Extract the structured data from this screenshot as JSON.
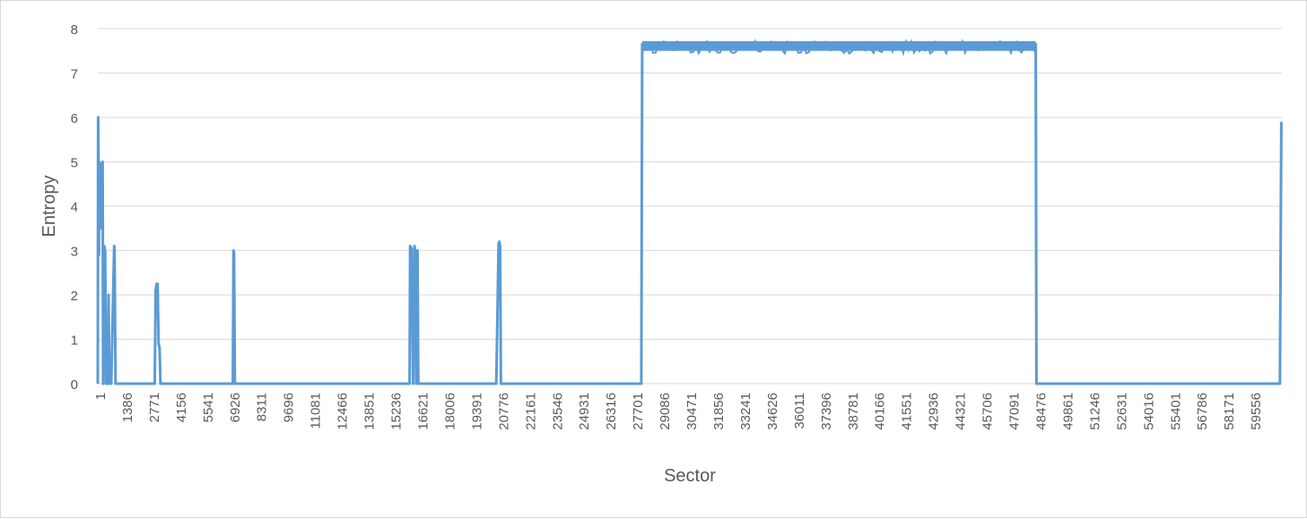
{
  "chart_data": {
    "type": "line",
    "title": "",
    "xlabel": "Sector",
    "ylabel": "Entropy",
    "ylim": [
      0,
      8
    ],
    "xlim": [
      1,
      61330
    ],
    "y_ticks": [
      0,
      1,
      2,
      3,
      4,
      5,
      6,
      7,
      8
    ],
    "x_tick_labels": [
      "1",
      "1386",
      "2771",
      "4156",
      "5541",
      "6926",
      "8311",
      "9696",
      "11081",
      "12466",
      "13851",
      "15236",
      "16621",
      "18006",
      "19391",
      "20776",
      "22161",
      "23546",
      "24931",
      "26316",
      "27701",
      "29086",
      "30471",
      "31856",
      "33241",
      "34626",
      "36011",
      "37396",
      "38781",
      "40166",
      "41551",
      "42936",
      "44321",
      "45706",
      "47091",
      "48476",
      "49861",
      "51246",
      "52631",
      "54016",
      "55401",
      "56786",
      "58171",
      "59556"
    ],
    "grid": "horizontal",
    "legend": "none",
    "line_color": "#5b9bd5",
    "series": [
      {
        "values_described": "sector vs entropy",
        "x": [
          1,
          20,
          40,
          60,
          70,
          120,
          160,
          250,
          280,
          330,
          380,
          430,
          520,
          560,
          600,
          700,
          850,
          870,
          920,
          1020,
          1100,
          2950,
          3000,
          3050,
          3100,
          3150,
          3200,
          3250,
          7000,
          7030,
          7060,
          7100,
          16150,
          16180,
          16260,
          16330,
          16410,
          16460,
          16490,
          16560,
          16600,
          20640,
          20680,
          20760,
          20800,
          20840,
          20880,
          28150,
          28200,
          48580,
          48620,
          61230,
          61300
        ],
        "y": [
          0,
          6.0,
          5.1,
          2.9,
          5.0,
          3.5,
          4.9,
          5.0,
          0,
          3.1,
          3.0,
          0,
          0,
          2.0,
          0,
          0,
          3.1,
          3.0,
          0,
          0,
          0,
          0,
          2.1,
          2.25,
          2.25,
          0.9,
          0.8,
          0,
          0,
          3.0,
          2.95,
          0,
          0,
          3.1,
          3.05,
          0,
          3.1,
          2.9,
          0,
          3.0,
          0,
          0,
          1.0,
          3.15,
          3.2,
          3.1,
          0,
          0,
          7.65,
          7.65,
          0,
          0,
          5.9
        ]
      }
    ],
    "plateau": {
      "x_start": 28200,
      "x_end": 48580,
      "y_min": 7.5,
      "y_max": 7.72
    }
  }
}
